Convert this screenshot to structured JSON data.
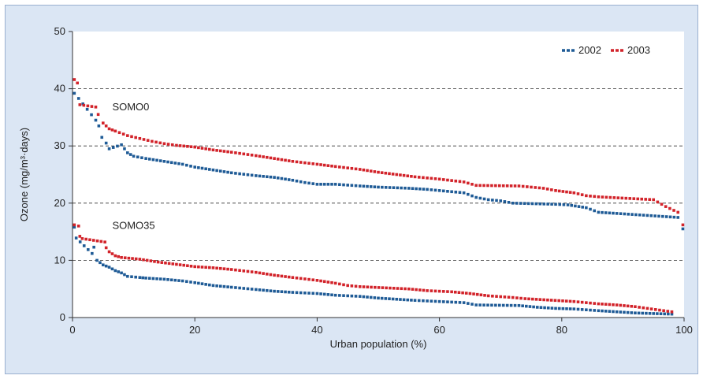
{
  "chart_data": {
    "type": "scatter",
    "title": "",
    "xlabel": "Urban population (%)",
    "ylabel": "Ozone (mg/m³·days)",
    "xlim": [
      0,
      100
    ],
    "ylim": [
      0,
      50
    ],
    "x_ticks": [
      0,
      20,
      40,
      60,
      80,
      100
    ],
    "y_ticks": [
      0,
      10,
      20,
      30,
      40,
      50
    ],
    "grid": "horizontal dashed at 10, 20, 30, 40",
    "legend_position": "top-right",
    "annotations": [
      {
        "text": "SOMO0",
        "x": 6.5,
        "y": 36.2
      },
      {
        "text": "SOMO35",
        "x": 6.5,
        "y": 15.5
      }
    ],
    "series": [
      {
        "name": "2002",
        "group": "SOMO0",
        "color": "#1f5b96",
        "points": [
          [
            0.3,
            39.2
          ],
          [
            1,
            38.3
          ],
          [
            3.8,
            34.5
          ],
          [
            4.3,
            33.5
          ],
          [
            4.8,
            31.5
          ],
          [
            5.5,
            30.5
          ],
          [
            6,
            29.5
          ],
          [
            8,
            30.2
          ],
          [
            9,
            28.8
          ],
          [
            10,
            28.2
          ],
          [
            12,
            27.8
          ],
          [
            15,
            27.3
          ],
          [
            18,
            26.8
          ],
          [
            20,
            26.3
          ],
          [
            23,
            25.8
          ],
          [
            26,
            25.3
          ],
          [
            30,
            24.8
          ],
          [
            33,
            24.5
          ],
          [
            36,
            24
          ],
          [
            38,
            23.6
          ],
          [
            40,
            23.3
          ],
          [
            43,
            23.3
          ],
          [
            47,
            23
          ],
          [
            50,
            22.8
          ],
          [
            55,
            22.6
          ],
          [
            58,
            22.4
          ],
          [
            60,
            22.2
          ],
          [
            64,
            21.8
          ],
          [
            66,
            21
          ],
          [
            68,
            20.6
          ],
          [
            70,
            20.4
          ],
          [
            72,
            20
          ],
          [
            79,
            19.8
          ],
          [
            81,
            19.7
          ],
          [
            84,
            19.2
          ],
          [
            86,
            18.4
          ],
          [
            89,
            18.2
          ],
          [
            99,
            17.5
          ],
          [
            99.8,
            15.5
          ]
        ]
      },
      {
        "name": "2003",
        "group": "SOMO0",
        "color": "#d2232a",
        "points": [
          [
            0.3,
            41.6
          ],
          [
            0.8,
            41
          ],
          [
            1.2,
            37.2
          ],
          [
            3.8,
            36.8
          ],
          [
            4.2,
            35.5
          ],
          [
            5,
            34
          ],
          [
            6,
            33
          ],
          [
            7,
            32.6
          ],
          [
            9,
            31.8
          ],
          [
            11,
            31.3
          ],
          [
            13,
            30.8
          ],
          [
            15,
            30.4
          ],
          [
            17,
            30.1
          ],
          [
            20,
            29.8
          ],
          [
            23,
            29.3
          ],
          [
            26,
            28.9
          ],
          [
            30,
            28.3
          ],
          [
            33,
            27.8
          ],
          [
            36,
            27.3
          ],
          [
            40,
            26.8
          ],
          [
            43,
            26.4
          ],
          [
            47,
            25.9
          ],
          [
            50,
            25.4
          ],
          [
            53,
            25
          ],
          [
            56,
            24.6
          ],
          [
            60,
            24.2
          ],
          [
            64,
            23.7
          ],
          [
            66,
            23.1
          ],
          [
            73,
            23
          ],
          [
            77,
            22.6
          ],
          [
            79,
            22.2
          ],
          [
            82,
            21.8
          ],
          [
            84,
            21.3
          ],
          [
            86,
            21.1
          ],
          [
            95,
            20.6
          ],
          [
            97,
            19.4
          ],
          [
            99,
            18.4
          ],
          [
            99.8,
            16.2
          ]
        ]
      },
      {
        "name": "2002",
        "group": "SOMO35",
        "color": "#1f5b96",
        "points": [
          [
            0.3,
            15.8
          ],
          [
            0.6,
            13.9
          ],
          [
            3.2,
            11.2
          ],
          [
            3.5,
            12.3
          ],
          [
            4,
            10
          ],
          [
            5,
            9.2
          ],
          [
            6,
            8.8
          ],
          [
            7,
            8.2
          ],
          [
            8,
            7.8
          ],
          [
            9,
            7.2
          ],
          [
            11,
            7
          ],
          [
            12,
            6.9
          ],
          [
            15,
            6.7
          ],
          [
            18,
            6.4
          ],
          [
            20,
            6.1
          ],
          [
            23,
            5.6
          ],
          [
            26,
            5.3
          ],
          [
            30,
            4.9
          ],
          [
            33,
            4.6
          ],
          [
            36,
            4.4
          ],
          [
            40,
            4.2
          ],
          [
            43,
            3.9
          ],
          [
            47,
            3.7
          ],
          [
            50,
            3.4
          ],
          [
            53,
            3.2
          ],
          [
            56,
            3
          ],
          [
            60,
            2.8
          ],
          [
            64,
            2.6
          ],
          [
            66,
            2.2
          ],
          [
            73,
            2.1
          ],
          [
            76,
            1.8
          ],
          [
            79,
            1.6
          ],
          [
            82,
            1.5
          ],
          [
            86,
            1.2
          ],
          [
            89,
            1
          ],
          [
            92,
            0.8
          ],
          [
            95,
            0.7
          ],
          [
            98,
            0.6
          ]
        ]
      },
      {
        "name": "2003",
        "group": "SOMO35",
        "color": "#d2232a",
        "points": [
          [
            0.3,
            16.2
          ],
          [
            1,
            16
          ],
          [
            1.2,
            14.2
          ],
          [
            1.6,
            13.8
          ],
          [
            5.3,
            13.2
          ],
          [
            5.5,
            12.2
          ],
          [
            6,
            11.5
          ],
          [
            7,
            10.8
          ],
          [
            8,
            10.5
          ],
          [
            11,
            10.2
          ],
          [
            14,
            9.7
          ],
          [
            17,
            9.3
          ],
          [
            20,
            8.9
          ],
          [
            23,
            8.7
          ],
          [
            26,
            8.4
          ],
          [
            30,
            7.9
          ],
          [
            33,
            7.4
          ],
          [
            36,
            7
          ],
          [
            40,
            6.5
          ],
          [
            43,
            6
          ],
          [
            45,
            5.6
          ],
          [
            47,
            5.4
          ],
          [
            55,
            5
          ],
          [
            58,
            4.7
          ],
          [
            62,
            4.5
          ],
          [
            65,
            4.2
          ],
          [
            68,
            3.8
          ],
          [
            72,
            3.5
          ],
          [
            74,
            3.3
          ],
          [
            82,
            2.8
          ],
          [
            84,
            2.6
          ],
          [
            86,
            2.4
          ],
          [
            89,
            2.2
          ],
          [
            92,
            1.9
          ],
          [
            94,
            1.6
          ],
          [
            96,
            1.3
          ],
          [
            98,
            1
          ]
        ]
      }
    ]
  }
}
